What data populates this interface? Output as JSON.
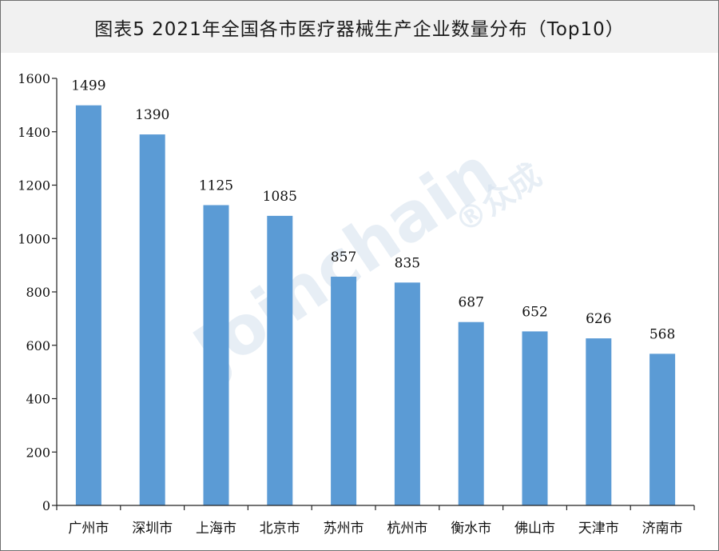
{
  "title": "图表5  2021年全国各市医疗器械生产企业数量分布（Top10）",
  "watermark": {
    "latin": "Joinchain",
    "cn": "®众成"
  },
  "colors": {
    "bar": "#5b9bd5",
    "axis": "#222222",
    "title_bg": "#f1f1f1"
  },
  "chart_data": {
    "type": "bar",
    "title": "图表5  2021年全国各市医疗器械生产企业数量分布（Top10）",
    "xlabel": "",
    "ylabel": "",
    "categories": [
      "广州市",
      "深圳市",
      "上海市",
      "北京市",
      "苏州市",
      "杭州市",
      "衡水市",
      "佛山市",
      "天津市",
      "济南市"
    ],
    "values": [
      1499,
      1390,
      1125,
      1085,
      857,
      835,
      687,
      652,
      626,
      568
    ],
    "ylim": [
      0,
      1600
    ],
    "yticks": [
      0,
      200,
      400,
      600,
      800,
      1000,
      1200,
      1400,
      1600
    ],
    "data_labels": true,
    "grid": false,
    "legend": "none"
  }
}
